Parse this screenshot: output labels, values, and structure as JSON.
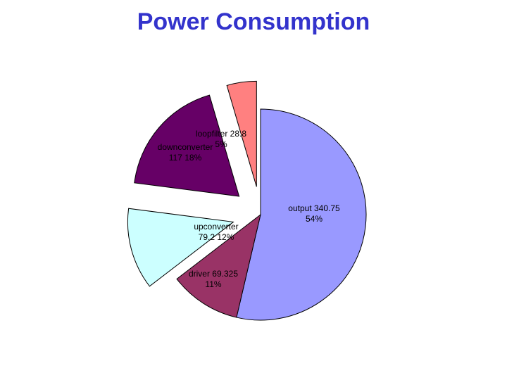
{
  "title": "Power Consumption",
  "chart_data": {
    "type": "pie",
    "title": "Power Consumption",
    "slices": [
      {
        "label": "output",
        "value": 340.75,
        "percent": "54%",
        "color": "#9999ff",
        "exploded": false
      },
      {
        "label": "driver",
        "value": 69.325,
        "percent": "11%",
        "color": "#993366",
        "exploded": false
      },
      {
        "label": "upconverter",
        "value": 79.2,
        "percent": "12%",
        "color": "#ccffff",
        "exploded": true
      },
      {
        "label": "downconverter",
        "value": 117,
        "percent": "18%",
        "color": "#660066",
        "exploded": true
      },
      {
        "label": "loopfilter",
        "value": 28.8,
        "percent": "5%",
        "color": "#ff8080",
        "exploded": true
      }
    ],
    "label_lines": [
      [
        "output 340.75",
        "54%"
      ],
      [
        "driver 69.325",
        "11%"
      ],
      [
        "upconverter",
        "79.2 12%"
      ],
      [
        "downconverter",
        "117 18%"
      ],
      [
        "loopfilter 28.8",
        "5%"
      ]
    ]
  }
}
